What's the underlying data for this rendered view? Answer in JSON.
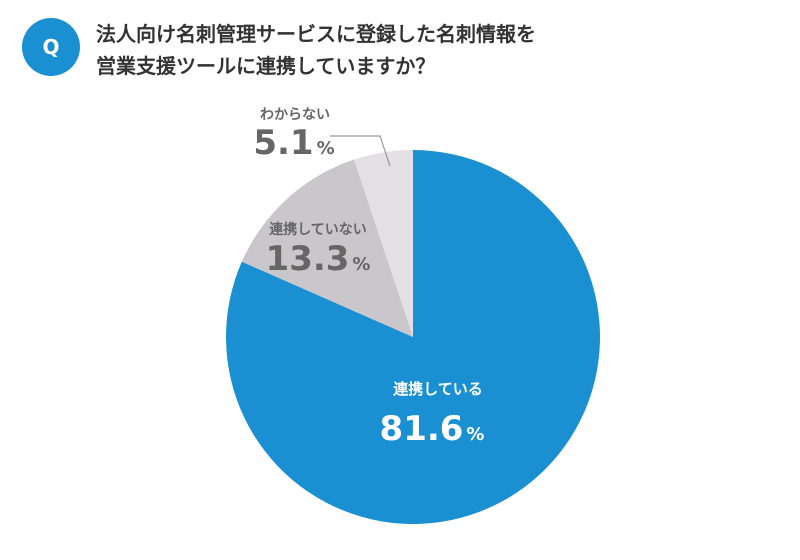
{
  "question_badge": "Q",
  "question_lines": [
    "法人向け名刺管理サービスに登録した名刺情報を",
    "営業支援ツールに連携していますか？"
  ],
  "colors": {
    "accent": "#1a8fd2",
    "slice_1": "#1a8fd2",
    "slice_2": "#c9c7cb",
    "slice_3": "#e2e0e5",
    "leader_line": "#999999"
  },
  "chart_data": {
    "type": "pie",
    "title": "法人向け名刺管理サービスに登録した名刺情報を営業支援ツールに連携していますか？",
    "slices": [
      {
        "label": "連携している",
        "value": 81.6,
        "value_text": "81.6",
        "unit": "%"
      },
      {
        "label": "連携していない",
        "value": 13.3,
        "value_text": "13.3",
        "unit": "%"
      },
      {
        "label": "わからない",
        "value": 5.1,
        "value_text": "5.1",
        "unit": "%"
      }
    ],
    "start": "12 o'clock",
    "direction": "clockwise"
  }
}
